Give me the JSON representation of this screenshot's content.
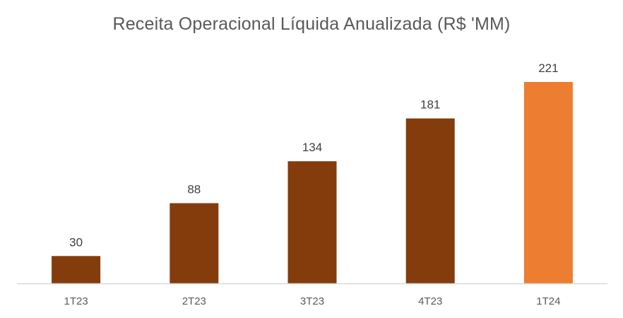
{
  "chart_data": {
    "type": "bar",
    "title": "Receita Operacional  Líquida Anualizada (R$ 'MM)",
    "categories": [
      "1T23",
      "2T23",
      "3T23",
      "4T23",
      "1T24"
    ],
    "values": [
      30,
      88,
      134,
      181,
      221
    ],
    "data_labels": [
      "30",
      "88",
      "134",
      "181",
      "221"
    ],
    "xlabel": "",
    "ylabel": "",
    "ylim": [
      0,
      250
    ],
    "grid": false,
    "legend": "none",
    "colors": {
      "bar": "#843C0C",
      "highlight_bar": "#ED7D31",
      "axis": "#D9D9D9",
      "label": "#404040",
      "tick": "#595959",
      "title": "#595959"
    },
    "highlight_index": 4
  }
}
